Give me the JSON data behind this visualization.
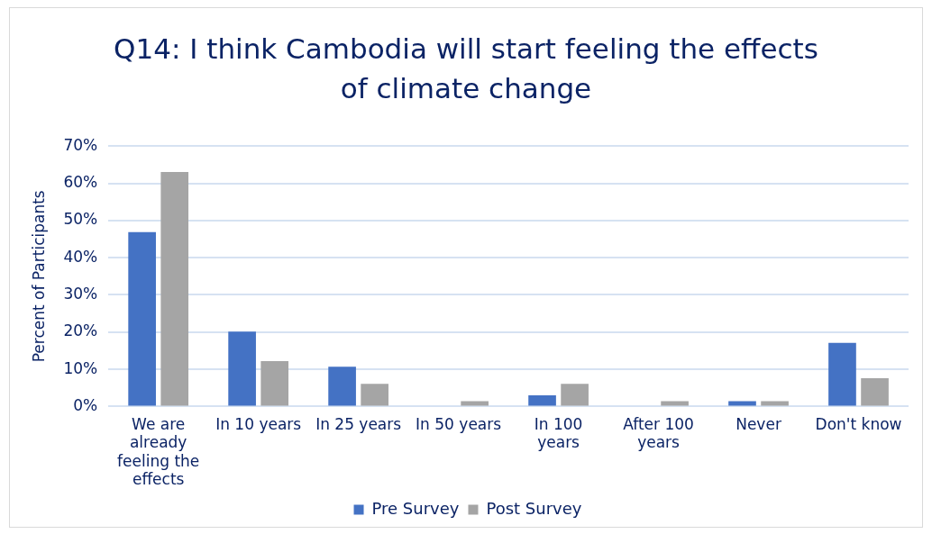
{
  "chart_data": {
    "type": "bar",
    "title": "Q14: I think Cambodia will start feeling the effects of climate change",
    "ylabel": "Percent of Participants",
    "categories": [
      "We are already feeling the effects",
      "In 10 years",
      "In 25 years",
      "In 50 years",
      "In 100 years",
      "After 100 years",
      "Never",
      "Don't know"
    ],
    "series": [
      {
        "name": "Pre Survey",
        "color": "#4472c4",
        "values": [
          46.9,
          20.1,
          10.7,
          0,
          3.0,
          0,
          1.4,
          17.1
        ]
      },
      {
        "name": "Post Survey",
        "color": "#a5a5a5",
        "values": [
          63,
          12.2,
          6.1,
          1.4,
          6.1,
          1.4,
          1.4,
          7.6
        ]
      }
    ],
    "ylim": [
      0,
      70
    ],
    "yticks": [
      {
        "value": 0,
        "label": "0%"
      },
      {
        "value": 10,
        "label": "10%"
      },
      {
        "value": 20,
        "label": "20%"
      },
      {
        "value": 30,
        "label": "30%"
      },
      {
        "value": 40,
        "label": "40%"
      },
      {
        "value": 50,
        "label": "50%"
      },
      {
        "value": 60,
        "label": "60%"
      },
      {
        "value": 70,
        "label": "70%"
      }
    ],
    "grid": "y",
    "legend": "bottom"
  }
}
